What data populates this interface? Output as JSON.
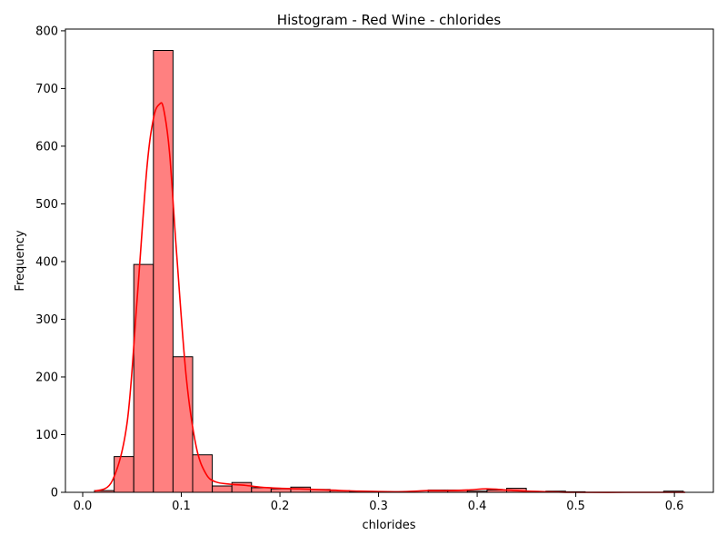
{
  "chart_data": {
    "type": "bar",
    "title": "Histogram - Red Wine - chlorides",
    "xlabel": "chlorides",
    "ylabel": "Frequency",
    "xlim": [
      -0.0175,
      0.6395
    ],
    "ylim": [
      0,
      803
    ],
    "xticks": [
      0.0,
      0.1,
      0.2,
      0.3,
      0.4,
      0.5,
      0.6
    ],
    "xtick_labels": [
      "0.0",
      "0.1",
      "0.2",
      "0.3",
      "0.4",
      "0.5",
      "0.6"
    ],
    "yticks": [
      0,
      100,
      200,
      300,
      400,
      500,
      600,
      700,
      800
    ],
    "ytick_labels": [
      "0",
      "100",
      "200",
      "300",
      "400",
      "500",
      "600",
      "700",
      "800"
    ],
    "bin_start": 0.012,
    "bin_width": 0.0199,
    "values": [
      3,
      62,
      395,
      766,
      235,
      65,
      11,
      17,
      8,
      6,
      9,
      5,
      3,
      1,
      1,
      1,
      0,
      4,
      4,
      2,
      4,
      7,
      0,
      2,
      1,
      0,
      0,
      0,
      0,
      2
    ],
    "bar_fill": "#ff8080",
    "bar_edge": "#000000",
    "kde_color": "#ff0000",
    "kde": {
      "x": [
        0.012,
        0.03,
        0.045,
        0.055,
        0.065,
        0.072,
        0.078,
        0.082,
        0.088,
        0.095,
        0.105,
        0.115,
        0.125,
        0.135,
        0.15,
        0.165,
        0.18,
        0.2,
        0.22,
        0.25,
        0.28,
        0.32,
        0.35,
        0.37,
        0.39,
        0.41,
        0.43,
        0.45,
        0.47,
        0.5,
        0.55,
        0.6,
        0.611
      ],
      "y": [
        2,
        20,
        120,
        330,
        560,
        650,
        673,
        665,
        590,
        420,
        200,
        80,
        32,
        18,
        14,
        12,
        9,
        7,
        6,
        4,
        2,
        1,
        3,
        3,
        4,
        6,
        4,
        2,
        1,
        0,
        0,
        0,
        0
      ]
    }
  }
}
